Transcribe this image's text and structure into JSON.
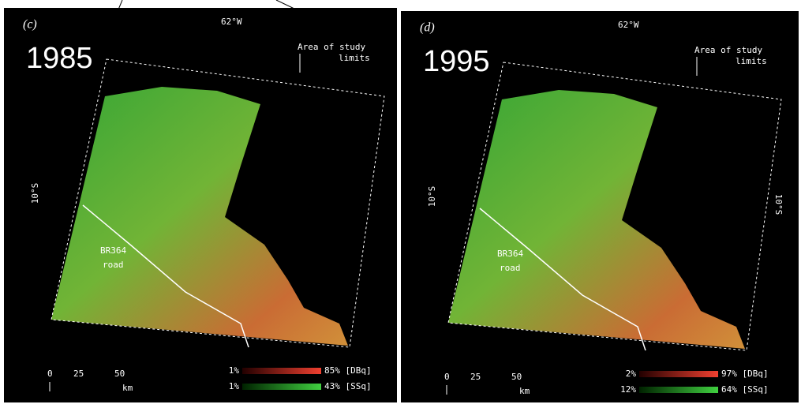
{
  "panels": [
    {
      "label": "(c)",
      "longitude": "62°W",
      "latitude": "10°S",
      "study_area_note": [
        "Area of study",
        "limits"
      ],
      "year": "1985",
      "road_label": [
        "BR364",
        "road"
      ],
      "scale": {
        "ticks": [
          "0",
          "25",
          "50"
        ],
        "unit": "km"
      },
      "legend": [
        {
          "min": "1%",
          "max": "85% [DBq]"
        },
        {
          "min": "1%",
          "max": "43% [SSq]"
        }
      ]
    },
    {
      "label": "(d)",
      "longitude": "62°W",
      "latitude": "10°S",
      "latitude_right": "10°S",
      "study_area_note": [
        "Area of study",
        "limits"
      ],
      "year": "1995",
      "road_label": [
        "BR364",
        "road"
      ],
      "scale": {
        "ticks": [
          "0",
          "25",
          "50"
        ],
        "unit": "km"
      },
      "legend": [
        {
          "min": "2%",
          "max": "97% [DBq]"
        },
        {
          "min": "12%",
          "max": "64% [SSq]"
        }
      ]
    }
  ]
}
